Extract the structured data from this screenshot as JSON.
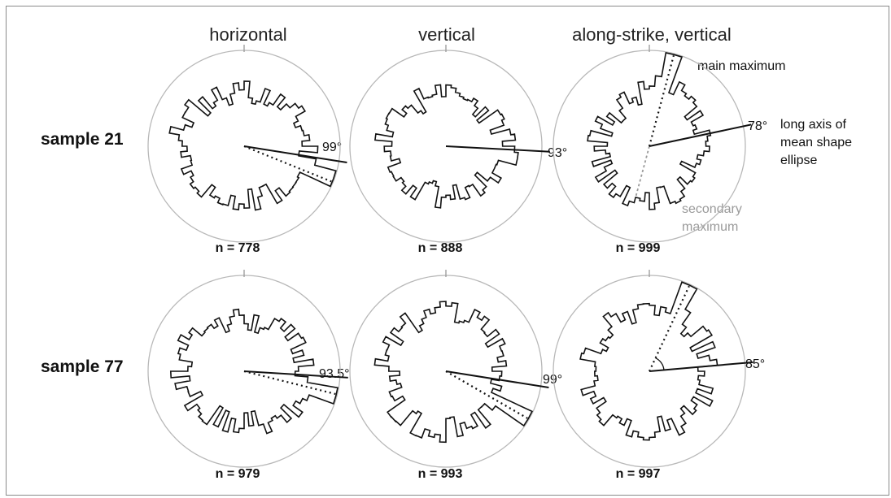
{
  "columns": [
    {
      "title": "horizontal"
    },
    {
      "title": "vertical"
    },
    {
      "title": "along-strike, vertical"
    }
  ],
  "rows": [
    {
      "label": "sample 21",
      "plots": [
        {
          "n_text": "n = 778",
          "angle_text": "99°",
          "angle_deg": 99,
          "max_deg": 112,
          "secondary": false,
          "seed": 11,
          "shape": "e",
          "rot": 99,
          "aspect": 0.55
        },
        {
          "n_text": "n = 888",
          "angle_text": "93°",
          "angle_deg": 93,
          "max_deg": null,
          "secondary": false,
          "seed": 23,
          "shape": "e",
          "rot": 92,
          "aspect": 0.45
        },
        {
          "n_text": "n = 999",
          "angle_text": "78°",
          "angle_deg": 78,
          "max_deg": 15,
          "secondary": true,
          "seed": 37,
          "shape": "e",
          "rot": 20,
          "aspect": 0.42
        }
      ]
    },
    {
      "label": "sample 77",
      "plots": [
        {
          "n_text": "n = 979",
          "angle_text": "93.5°",
          "angle_deg": 93.5,
          "max_deg": 104,
          "secondary": false,
          "seed": 51,
          "shape": "e",
          "rot": 100,
          "aspect": 0.5
        },
        {
          "n_text": "n = 993",
          "angle_text": "99°",
          "angle_deg": 99,
          "max_deg": 120,
          "secondary": false,
          "seed": 67,
          "shape": "r",
          "rot": 0,
          "aspect": 0.8
        },
        {
          "n_text": "n = 997",
          "angle_text": "85°",
          "angle_deg": 85,
          "max_deg": 25,
          "secondary": false,
          "seed": 79,
          "shape": "r",
          "rot": 0,
          "aspect": 0.85
        }
      ]
    }
  ],
  "annotations": {
    "main_maximum": "main maximum",
    "long_axis": [
      "long axis of",
      "mean shape",
      "ellipse"
    ],
    "secondary_maximum": [
      "secondary",
      "maximum"
    ]
  }
}
